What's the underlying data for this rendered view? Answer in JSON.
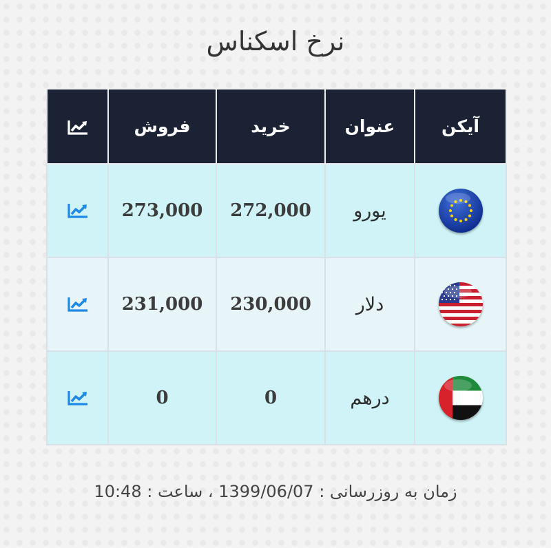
{
  "page": {
    "title": "نرخ اسکناس"
  },
  "table": {
    "headers": {
      "icon": "آیکن",
      "title": "عنوان",
      "buy": "خرید",
      "sell": "فروش",
      "chart_icon": "chart-line-icon"
    },
    "rows": [
      {
        "flag": "eu-flag-icon",
        "title": "یورو",
        "buy": "272,000",
        "sell": "273,000",
        "chart_icon": "chart-line-icon"
      },
      {
        "flag": "us-flag-icon",
        "title": "دلار",
        "buy": "230,000",
        "sell": "231,000",
        "chart_icon": "chart-line-icon"
      },
      {
        "flag": "uae-flag-icon",
        "title": "درهم",
        "buy": "0",
        "sell": "0",
        "chart_icon": "chart-line-icon"
      }
    ]
  },
  "footer": {
    "update_text": "زمان به روزرسانی : 1399/06/07 ، ساعت : 10:48"
  },
  "colors": {
    "header_bg": "#1b2233",
    "row_odd_bg": "#cff3f6",
    "row_even_bg": "#e7f5f8",
    "chart_icon": "#1e88e5"
  }
}
